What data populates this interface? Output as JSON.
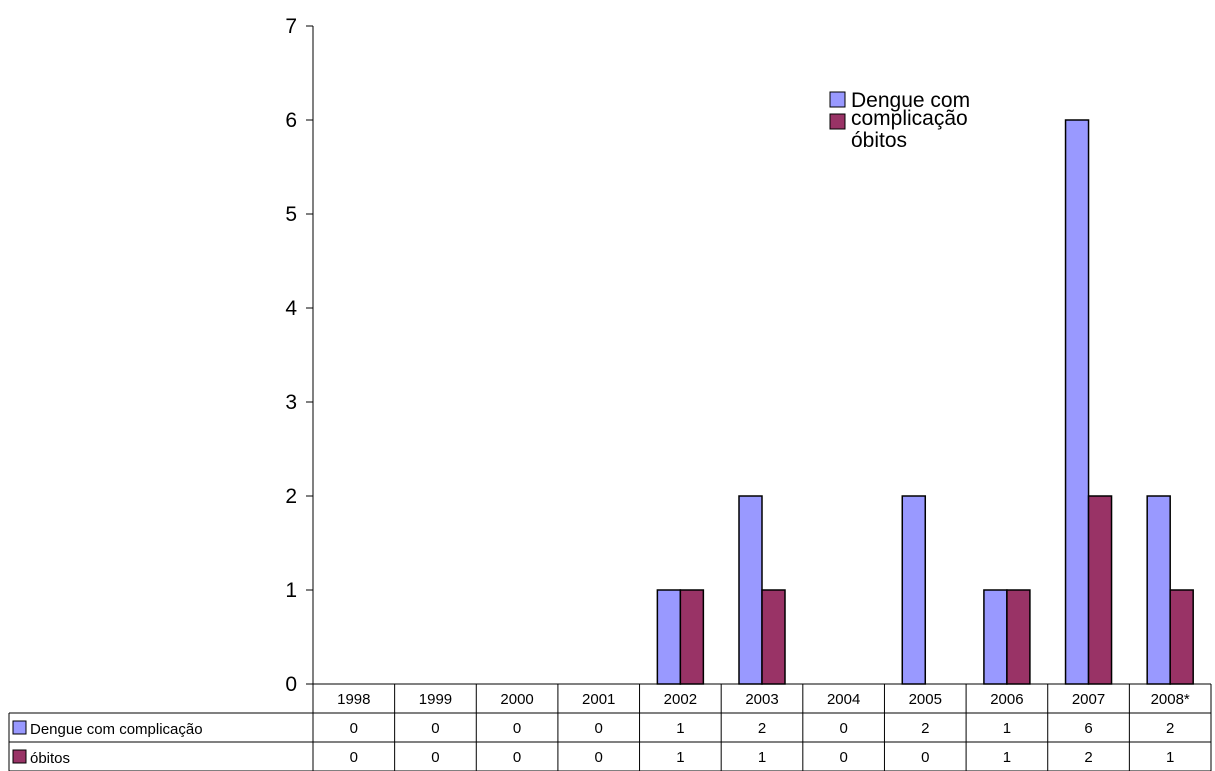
{
  "chart_data": {
    "type": "bar",
    "categories": [
      "1998",
      "1999",
      "2000",
      "2001",
      "2002",
      "2003",
      "2004",
      "2005",
      "2006",
      "2007",
      "2008*"
    ],
    "series": [
      {
        "name": "Dengue com complicação",
        "color": "#9999ff",
        "values": [
          0,
          0,
          0,
          0,
          1,
          2,
          0,
          2,
          1,
          6,
          2
        ]
      },
      {
        "name": "óbitos",
        "color": "#993366",
        "values": [
          0,
          0,
          0,
          0,
          1,
          1,
          0,
          0,
          1,
          2,
          1
        ]
      }
    ],
    "ylim": [
      0,
      7
    ],
    "yticks": [
      "0",
      "1",
      "2",
      "3",
      "4",
      "5",
      "6",
      "7"
    ],
    "legend_position": "top-right",
    "grid": false,
    "data_table": true,
    "legend": {
      "line1": "Dengue com",
      "line2": "complicação",
      "series2": "óbitos"
    }
  }
}
